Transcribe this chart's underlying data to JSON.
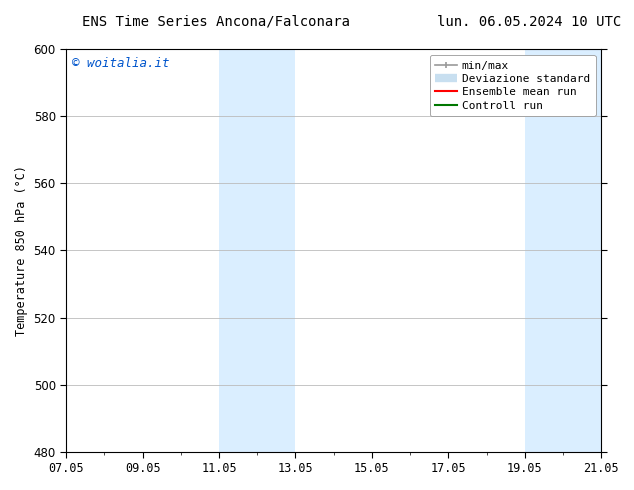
{
  "title_left": "ENS Time Series Ancona/Falconara",
  "title_right": "lun. 06.05.2024 10 UTC",
  "ylabel": "Temperature 850 hPa (°C)",
  "watermark": "© woitalia.it",
  "watermark_color": "#0055cc",
  "ylim": [
    480,
    600
  ],
  "yticks": [
    480,
    500,
    520,
    540,
    560,
    580,
    600
  ],
  "xtick_labels": [
    "07.05",
    "09.05",
    "11.05",
    "13.05",
    "15.05",
    "17.05",
    "19.05",
    "21.05"
  ],
  "xtick_positions": [
    0,
    2,
    4,
    6,
    8,
    10,
    12,
    14
  ],
  "xlim": [
    0,
    14
  ],
  "shaded_bands": [
    {
      "x_start": 4,
      "x_end": 6,
      "color": "#daeeff"
    },
    {
      "x_start": 12,
      "x_end": 14,
      "color": "#daeeff"
    }
  ],
  "background_color": "#ffffff",
  "grid_color": "#bbbbbb",
  "title_fontsize": 10,
  "tick_fontsize": 8.5,
  "legend_fontsize": 8,
  "ylabel_fontsize": 8.5,
  "watermark_fontsize": 9
}
